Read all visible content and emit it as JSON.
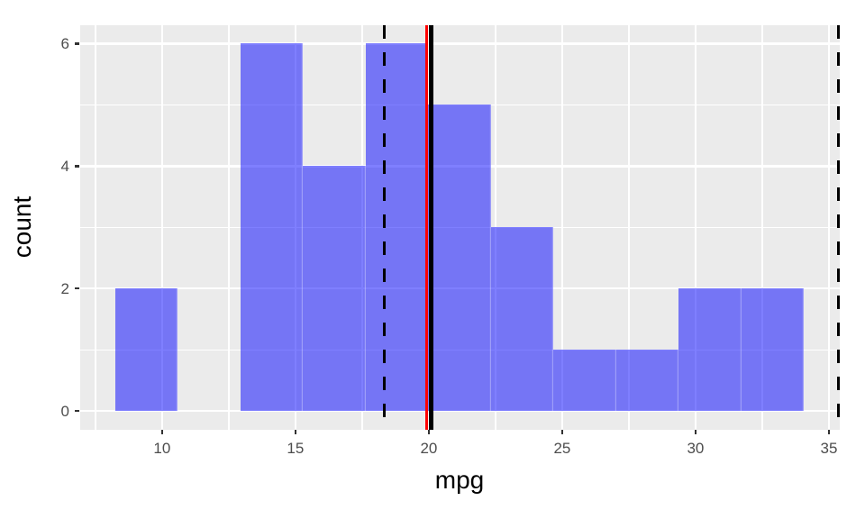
{
  "chart_data": {
    "type": "histogram",
    "title": "",
    "xlabel": "mpg",
    "ylabel": "count",
    "bin_edges": [
      8.245,
      10.592,
      12.939,
      15.286,
      17.633,
      19.98,
      22.327,
      24.674,
      27.021,
      29.368,
      31.715,
      34.062
    ],
    "counts": [
      2,
      0,
      6,
      4,
      6,
      5,
      3,
      1,
      1,
      2,
      2
    ],
    "x_ticks": [
      10,
      15,
      20,
      25,
      30,
      35
    ],
    "x_tick_labels": [
      "10",
      "15",
      "20",
      "25",
      "30",
      "35"
    ],
    "y_ticks": [
      0,
      2,
      4,
      6
    ],
    "y_tick_labels": [
      "0",
      "2",
      "4",
      "6"
    ],
    "x_minor": [
      7.5,
      12.5,
      17.5,
      22.5,
      27.5,
      32.5
    ],
    "y_minor": [
      1,
      3,
      5
    ],
    "xlim": [
      6.93,
      35.39
    ],
    "ylim": [
      -0.3,
      6.3
    ],
    "legend": "none",
    "grid": "on",
    "colors": {
      "panel_bg": "#EBEBEB",
      "gridline": "#FFFFFF",
      "bar_fill": "rgba(0,0,255,0.5)",
      "tick_mark": "#333333",
      "tick_label": "#4D4D4D",
      "axis_title": "#000000"
    },
    "vlines": [
      {
        "name": "vline-dashed-left",
        "x": 18.33,
        "color": "#000000",
        "style": "dashed",
        "width": 3.5
      },
      {
        "name": "vline-red-solid",
        "x": 19.92,
        "color": "#FF0000",
        "style": "solid",
        "width": 3.5
      },
      {
        "name": "vline-black-solid",
        "x": 20.09,
        "color": "#000000",
        "style": "solid",
        "width": 5
      },
      {
        "name": "vline-dashed-right",
        "x": 35.35,
        "color": "#000000",
        "style": "dashed",
        "width": 3.5
      }
    ]
  }
}
